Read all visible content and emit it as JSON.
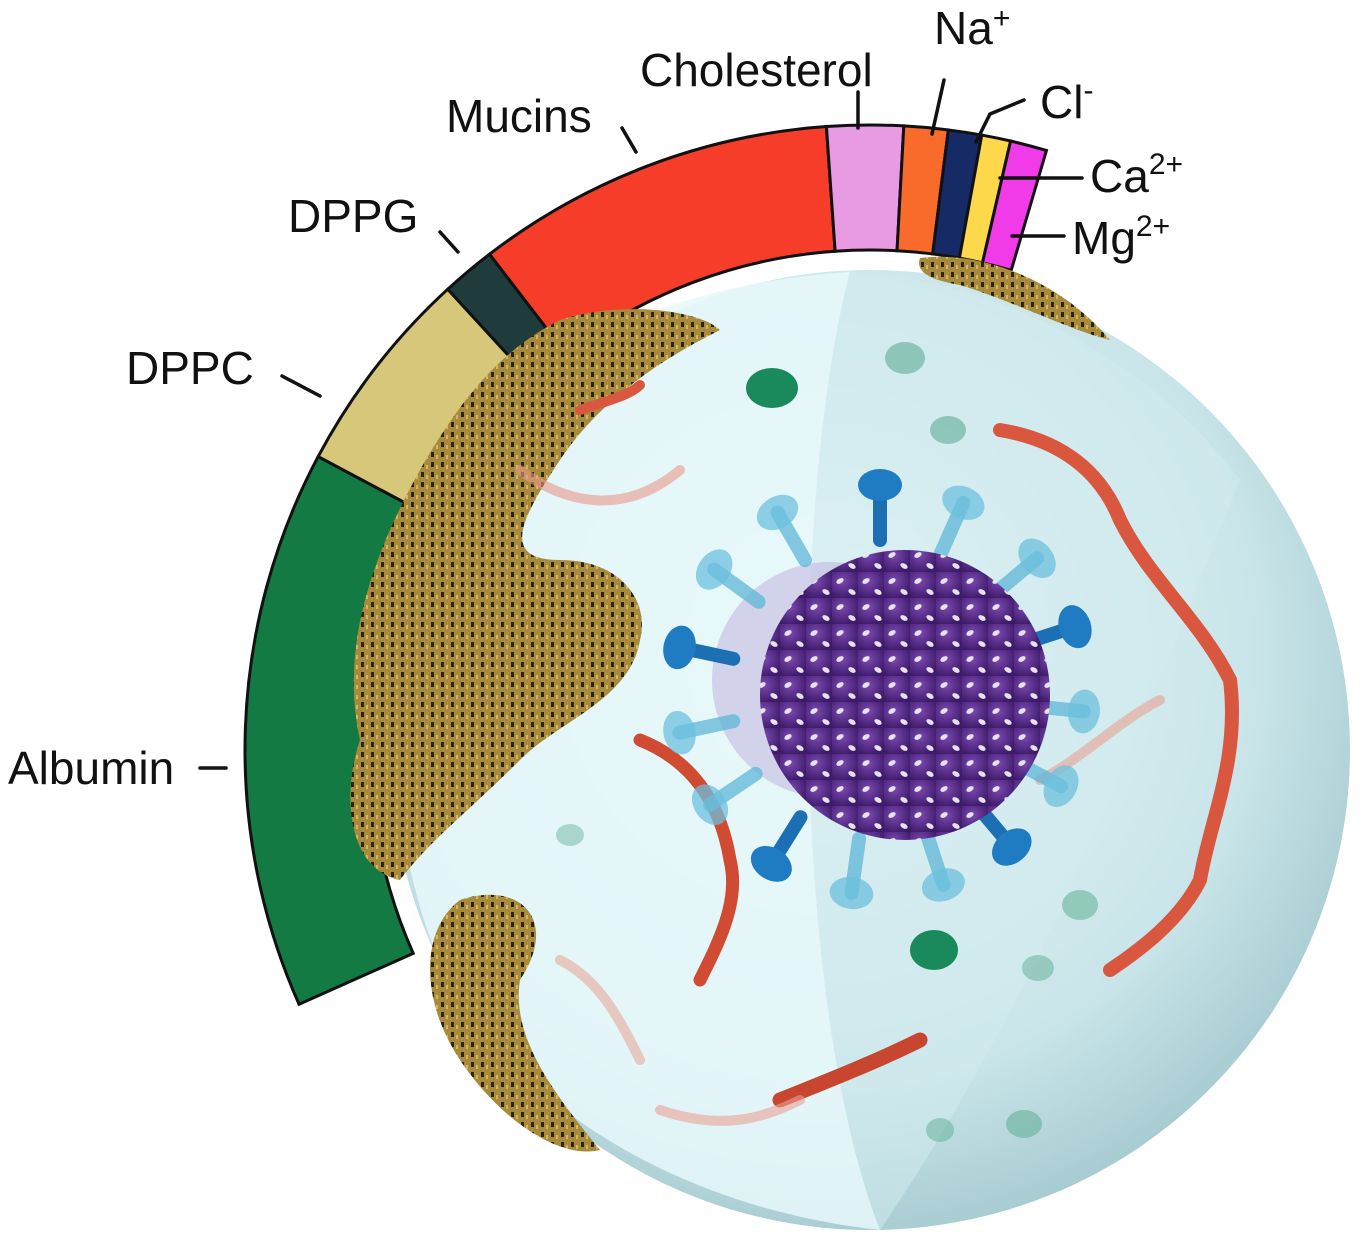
{
  "ring": {
    "segments": [
      {
        "key": "albumin",
        "color": "#137a44"
      },
      {
        "key": "dppc",
        "color": "#d6c77a"
      },
      {
        "key": "dppg",
        "color": "#1f3b3c"
      },
      {
        "key": "mucins",
        "color": "#f53d2a"
      },
      {
        "key": "cholesterol",
        "color": "#e89ae2"
      },
      {
        "key": "na",
        "color": "#f86b2b"
      },
      {
        "key": "cl",
        "color": "#162a66"
      },
      {
        "key": "ca",
        "color": "#fcd84a"
      },
      {
        "key": "mg",
        "color": "#f13be8"
      }
    ]
  },
  "labels": {
    "albumin": "Albumin",
    "dppc": "DPPC",
    "dppg": "DPPG",
    "mucins": "Mucins",
    "cholesterol": "Cholesterol",
    "na": {
      "base": "Na",
      "sup": "+"
    },
    "cl": {
      "base": "Cl",
      "sup": "-"
    },
    "ca": {
      "base": "Ca",
      "sup": "2+"
    },
    "mg": {
      "base": "Mg",
      "sup": "2+"
    }
  },
  "colors": {
    "droplet": "#bfe0e4",
    "droplet_inner": "#e6f7f9",
    "surfactant": "#a88a3c",
    "virus_core": "#5a2c8c",
    "spike": "#2a8fc7",
    "mucin_strand": "#e0583f",
    "albumin_blob": "#1a8a5c"
  }
}
